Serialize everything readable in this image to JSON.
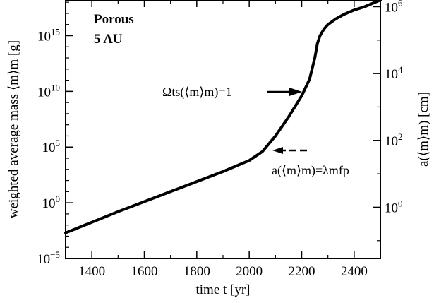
{
  "chart_data": {
    "type": "line",
    "xlabel": "time  t [yr]",
    "ylabel_left": "weighted average mass  ⟨m⟩m  [g]",
    "ylabel_right": "a(⟨m⟩m)  [cm]",
    "xlim": [
      1300,
      2500
    ],
    "ylim_log10": [
      -5,
      18.2
    ],
    "yscale": "log",
    "x_ticks": [
      1400,
      1600,
      1800,
      2000,
      2200,
      2400
    ],
    "y_left_ticks": [
      {
        "base": "10",
        "exp": "15",
        "log10": 15
      },
      {
        "base": "10",
        "exp": "10",
        "log10": 10
      },
      {
        "base": "10",
        "exp": "5",
        "log10": 5
      },
      {
        "base": "10",
        "exp": "0",
        "log10": 0
      },
      {
        "base": "10",
        "exp": "−5",
        "log10": -5
      }
    ],
    "y_right_ticks": [
      {
        "base": "10",
        "exp": "6",
        "a_log10": 6
      },
      {
        "base": "10",
        "exp": "4",
        "a_log10": 4
      },
      {
        "base": "10",
        "exp": "2",
        "a_log10": 2
      },
      {
        "base": "10",
        "exp": "0",
        "a_log10": 0
      }
    ],
    "right_axis_relation": "log10(m) = 3*log10(a) - 0.4",
    "panel_label": [
      "Porous",
      "5 AU"
    ],
    "annotations": [
      {
        "text": "Ωts(⟨m⟩m)=1",
        "arrow": "solid",
        "at": {
          "x": 2250,
          "log10_m": 12.4
        }
      },
      {
        "text": "a(⟨m⟩m)=λmfp",
        "arrow": "dashed",
        "at": {
          "x": 2070,
          "log10_m": 5.75
        }
      }
    ],
    "series": [
      {
        "x": [
          1300,
          1400,
          1500,
          1600,
          1700,
          1800,
          1900,
          2000,
          2050,
          2100,
          2150,
          2200,
          2230,
          2250,
          2260,
          2270,
          2285,
          2300,
          2330,
          2360,
          2400,
          2440,
          2500
        ],
        "log10_y": [
          -2.7,
          -1.75,
          -0.8,
          0.1,
          1.0,
          1.9,
          2.8,
          3.8,
          4.6,
          6.0,
          7.7,
          9.6,
          11.1,
          13.0,
          14.3,
          15.0,
          15.6,
          16.0,
          16.5,
          16.9,
          17.3,
          17.6,
          18.2
        ]
      }
    ]
  }
}
